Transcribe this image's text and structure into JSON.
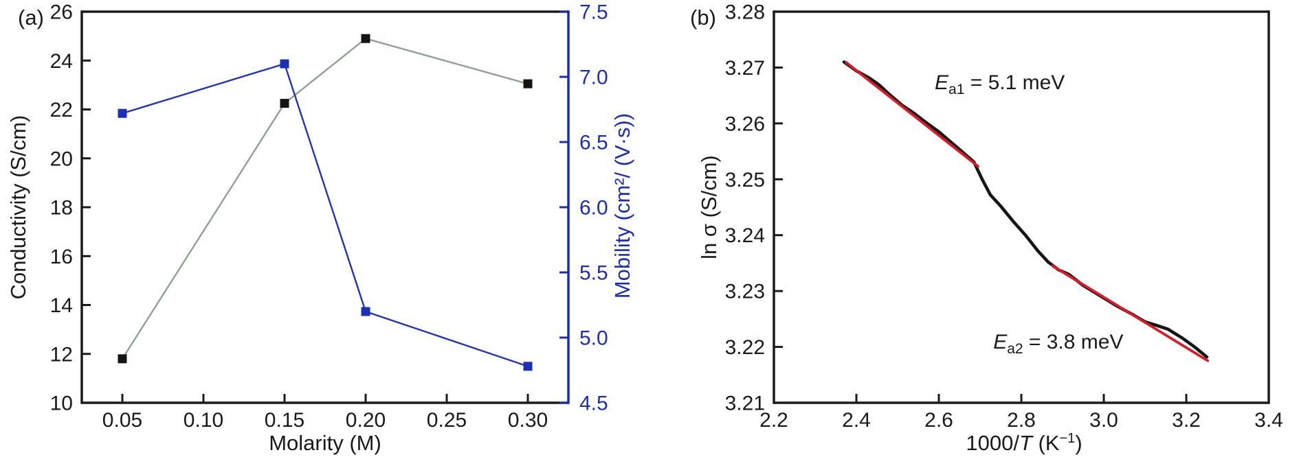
{
  "page": {
    "background": "#ffffff"
  },
  "colors": {
    "axis_black": "#1a1a1a",
    "axis_blue": "#1b2eb3",
    "conductivity_line": "#8fa18f",
    "conductivity_marker": "#141414",
    "mobility_line": "#2133bb",
    "mobility_marker": "#1c2fb6",
    "measured_curve": "#151515",
    "fit_line": "#da1a26"
  },
  "chart_data": [
    {
      "type": "line",
      "panel_label": "(a)",
      "xlabel": "Molarity (M)",
      "ylabel_left": "Conductivity (S/cm)",
      "ylabel_right": "Mobility (cm²/ (V·s))",
      "xlim": [
        0.025,
        0.325
      ],
      "ylim_left": [
        10,
        26
      ],
      "ylim_right": [
        4.5,
        7.5
      ],
      "grid": false,
      "x_ticks": {
        "values": [
          0.05,
          0.1,
          0.15,
          0.2,
          0.25,
          0.3
        ],
        "labels": [
          "0.05",
          "0.10",
          "0.15",
          "0.20",
          "0.25",
          "0.30"
        ]
      },
      "y_ticks_left": {
        "values": [
          10,
          12,
          14,
          16,
          18,
          20,
          22,
          24,
          26
        ],
        "labels": [
          "10",
          "12",
          "14",
          "16",
          "18",
          "20",
          "22",
          "24",
          "26"
        ]
      },
      "y_ticks_right": {
        "values": [
          4.5,
          5.0,
          5.5,
          6.0,
          6.5,
          7.0,
          7.5
        ],
        "labels": [
          "4.5",
          "5.0",
          "5.5",
          "6.0",
          "6.5",
          "7.0",
          "7.5"
        ]
      },
      "series": [
        {
          "name": "conductivity",
          "axis": "left",
          "x": [
            0.05,
            0.15,
            0.2,
            0.3
          ],
          "y": [
            11.8,
            22.25,
            24.9,
            23.05
          ],
          "marker": "square"
        },
        {
          "name": "mobility",
          "axis": "right",
          "x": [
            0.05,
            0.15,
            0.2,
            0.3
          ],
          "y": [
            6.72,
            7.1,
            5.2,
            4.78
          ],
          "marker": "square"
        }
      ]
    },
    {
      "type": "line",
      "panel_label": "(b)",
      "xlabel_parts": [
        {
          "text": "1000/"
        },
        {
          "text": "T",
          "italic": true
        },
        {
          "text": " (K"
        },
        {
          "text": "−1",
          "super": true
        },
        {
          "text": ")"
        }
      ],
      "ylabel": "ln σ (S/cm)",
      "xlim": [
        2.2,
        3.4
      ],
      "ylim": [
        3.21,
        3.28
      ],
      "grid": false,
      "x_ticks": {
        "values": [
          2.2,
          2.4,
          2.6,
          2.8,
          3.0,
          3.2,
          3.4
        ],
        "labels": [
          "2.2",
          "2.4",
          "2.6",
          "2.8",
          "3.0",
          "3.2",
          "3.4"
        ]
      },
      "y_ticks": {
        "values": [
          3.21,
          3.22,
          3.23,
          3.24,
          3.25,
          3.26,
          3.27,
          3.28
        ],
        "labels": [
          "3.21",
          "3.22",
          "3.23",
          "3.24",
          "3.25",
          "3.26",
          "3.27",
          "3.28"
        ]
      },
      "series": [
        {
          "name": "measured",
          "role": "data",
          "x": [
            2.37,
            2.4,
            2.43,
            2.455,
            2.48,
            2.51,
            2.54,
            2.57,
            2.6,
            2.63,
            2.66,
            2.685,
            2.705,
            2.725,
            2.75,
            2.78,
            2.81,
            2.84,
            2.865,
            2.89,
            2.915,
            2.95,
            2.99,
            3.03,
            3.07,
            3.1,
            3.13,
            3.155,
            3.19,
            3.22,
            3.25
          ],
          "y": [
            3.271,
            3.2694,
            3.2682,
            3.2669,
            3.2652,
            3.2633,
            3.2618,
            3.2601,
            3.2585,
            3.2566,
            3.2547,
            3.2531,
            3.25,
            3.2472,
            3.2452,
            3.2425,
            3.24,
            3.2372,
            3.2352,
            3.2338,
            3.233,
            3.231,
            3.2292,
            3.2274,
            3.2258,
            3.2245,
            3.2238,
            3.2232,
            3.2216,
            3.22,
            3.2182
          ]
        },
        {
          "name": "fit-segment-1",
          "role": "fit",
          "x": [
            2.375,
            2.695
          ],
          "y": [
            3.2712,
            3.2526
          ]
        },
        {
          "name": "fit-segment-2",
          "role": "fit",
          "x": [
            2.875,
            3.252
          ],
          "y": [
            3.2348,
            3.2178
          ]
        }
      ],
      "annotations": [
        {
          "symbol": "E",
          "subscript": "a1",
          "text": " = 5.1 meV",
          "x": 2.59,
          "y": 3.2662
        },
        {
          "symbol": "E",
          "subscript": "a2",
          "text": " = 3.8 meV",
          "x": 2.732,
          "y": 3.2198
        }
      ]
    }
  ]
}
